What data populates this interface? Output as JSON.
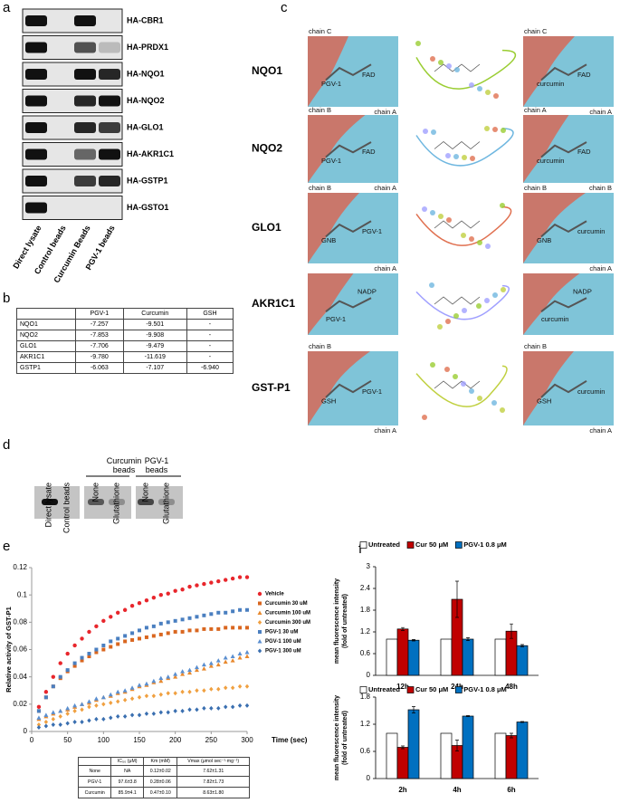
{
  "panel_letters": [
    "a",
    "b",
    "c",
    "d",
    "e",
    "f"
  ],
  "blot_a": {
    "proteins": [
      "HA-CBR1",
      "HA-PRDX1",
      "HA-NQO1",
      "HA-NQO2",
      "HA-GLO1",
      "HA-AKR1C1",
      "HA-GSTP1",
      "HA-GSTO1"
    ],
    "lanes": [
      "Direct lysate",
      "Control beads",
      "Curcumin Beads",
      "PGV-1 beads"
    ]
  },
  "docking_table": {
    "columns": [
      "PGV-1",
      "Curcumin",
      "GSH"
    ],
    "rows": [
      [
        "NQO1",
        "-7.257",
        "-9.501",
        "-"
      ],
      [
        "NQO2",
        "-7.853",
        "-9.908",
        "-"
      ],
      [
        "GLO1",
        "-7.706",
        "-9.479",
        "-"
      ],
      [
        "AKR1C1",
        "-9.780",
        "-11.619",
        "-"
      ],
      [
        "GSTP1",
        "-6.063",
        "-7.107",
        "-6.940"
      ]
    ]
  },
  "structures": [
    {
      "protein": "NQO1",
      "left": [
        "chain C",
        "PGV-1",
        "FAD",
        "chain A"
      ],
      "right": [
        "chain C",
        "curcumin",
        "FAD",
        "chain A"
      ]
    },
    {
      "protein": "NQO2",
      "left": [
        "chain B",
        "PGV-1",
        "FAD",
        "chain A"
      ],
      "right": [
        "chain A",
        "curcumin",
        "FAD",
        "chain B"
      ]
    },
    {
      "protein": "GLO1",
      "left": [
        "chain B",
        "GNB",
        "PGV-1",
        "chain A"
      ],
      "right": [
        "chain B",
        "GNB",
        "curcumin",
        "chain A"
      ]
    },
    {
      "protein": "AKR1C1",
      "left": [
        "NADP",
        "PGV-1"
      ],
      "right": [
        "NADP",
        "curcumin"
      ]
    },
    {
      "protein": "GST-P1",
      "left": [
        "chain B",
        "GSH",
        "PGV-1",
        "chain A"
      ],
      "right": [
        "chain B",
        "GSH",
        "curcumin",
        "chain A"
      ]
    }
  ],
  "blot_d": {
    "lanes": [
      "Direct lysate",
      "Control beads"
    ],
    "groups": [
      {
        "name": "Curcumin beads",
        "lanes": [
          "None",
          "Glutathione"
        ]
      },
      {
        "name": "PGV-1 beads",
        "lanes": [
          "None",
          "Glutathione"
        ]
      }
    ]
  },
  "kinetics_table": {
    "columns": [
      "IC₅₀ (μM)",
      "Km (mM)",
      "Vmax (μmol sec⁻¹·mg⁻¹)"
    ],
    "rows": [
      [
        "None",
        "NA",
        "0.12±0.02",
        "7.62±1.31"
      ],
      [
        "PGV-1",
        "97.6±3.8",
        "0.28±0.06",
        "7.82±1.73"
      ],
      [
        "Curcumin",
        "85.9±4.1",
        "0.47±0.10",
        "8.63±1.80"
      ]
    ]
  },
  "chart_data": [
    {
      "type": "scatter",
      "ylabel": "Relative activity of GST-P1",
      "xlabel": "Time (sec)",
      "legend": "right",
      "grid": false,
      "xlim": [
        0,
        300
      ],
      "xticks": [
        0,
        50,
        100,
        150,
        200,
        250,
        300
      ],
      "ylim": [
        0,
        0.12
      ],
      "yticks": [
        0,
        0.02,
        0.04,
        0.06,
        0.08,
        0.1,
        0.12
      ],
      "x": [
        10,
        20,
        30,
        40,
        50,
        60,
        70,
        80,
        90,
        100,
        110,
        120,
        130,
        140,
        150,
        160,
        170,
        180,
        190,
        200,
        210,
        220,
        230,
        240,
        250,
        260,
        270,
        280,
        290,
        300
      ],
      "series": [
        {
          "name": "Vehicle",
          "color": "#e8262c",
          "marker": "circle",
          "values": [
            0.018,
            0.029,
            0.04,
            0.05,
            0.057,
            0.063,
            0.068,
            0.073,
            0.077,
            0.081,
            0.084,
            0.087,
            0.089,
            0.092,
            0.094,
            0.096,
            0.098,
            0.1,
            0.101,
            0.103,
            0.104,
            0.106,
            0.107,
            0.108,
            0.109,
            0.11,
            0.111,
            0.112,
            0.113,
            0.113
          ]
        },
        {
          "name": "Curcumin 30 uM",
          "color": "#d9661f",
          "marker": "square",
          "values": [
            0.015,
            0.025,
            0.033,
            0.039,
            0.044,
            0.048,
            0.052,
            0.055,
            0.058,
            0.06,
            0.062,
            0.064,
            0.066,
            0.067,
            0.068,
            0.069,
            0.07,
            0.071,
            0.072,
            0.073,
            0.073,
            0.074,
            0.074,
            0.075,
            0.075,
            0.075,
            0.076,
            0.076,
            0.076,
            0.076
          ]
        },
        {
          "name": "Curcumin 100 uM",
          "color": "#e8892e",
          "marker": "triangle",
          "values": [
            0.009,
            0.011,
            0.013,
            0.015,
            0.016,
            0.018,
            0.02,
            0.021,
            0.023,
            0.025,
            0.026,
            0.028,
            0.029,
            0.031,
            0.033,
            0.034,
            0.036,
            0.037,
            0.039,
            0.04,
            0.042,
            0.043,
            0.045,
            0.046,
            0.048,
            0.049,
            0.051,
            0.052,
            0.054,
            0.055
          ]
        },
        {
          "name": "Curcumin 300 uM",
          "color": "#f0a040",
          "marker": "diamond",
          "values": [
            0.005,
            0.007,
            0.009,
            0.011,
            0.013,
            0.015,
            0.016,
            0.018,
            0.019,
            0.02,
            0.021,
            0.022,
            0.023,
            0.024,
            0.025,
            0.026,
            0.026,
            0.027,
            0.028,
            0.028,
            0.029,
            0.029,
            0.03,
            0.03,
            0.031,
            0.031,
            0.032,
            0.032,
            0.033,
            0.033
          ]
        },
        {
          "name": "PGV-1 30 uM",
          "color": "#4a7fc0",
          "marker": "square",
          "values": [
            0.015,
            0.025,
            0.033,
            0.04,
            0.045,
            0.05,
            0.054,
            0.057,
            0.06,
            0.063,
            0.066,
            0.068,
            0.07,
            0.072,
            0.074,
            0.076,
            0.077,
            0.079,
            0.08,
            0.081,
            0.082,
            0.083,
            0.084,
            0.085,
            0.086,
            0.087,
            0.087,
            0.088,
            0.089,
            0.089
          ]
        },
        {
          "name": "PGV-1 100 uM",
          "color": "#5b8fd0",
          "marker": "triangle",
          "values": [
            0.01,
            0.012,
            0.014,
            0.015,
            0.017,
            0.019,
            0.02,
            0.022,
            0.024,
            0.025,
            0.027,
            0.029,
            0.03,
            0.032,
            0.034,
            0.035,
            0.037,
            0.039,
            0.04,
            0.042,
            0.044,
            0.045,
            0.047,
            0.049,
            0.05,
            0.052,
            0.054,
            0.055,
            0.057,
            0.058
          ]
        },
        {
          "name": "PGV-1 300 uM",
          "color": "#3a6fb0",
          "marker": "diamond",
          "values": [
            0.003,
            0.004,
            0.005,
            0.005,
            0.006,
            0.007,
            0.007,
            0.008,
            0.009,
            0.009,
            0.01,
            0.011,
            0.011,
            0.012,
            0.012,
            0.013,
            0.013,
            0.014,
            0.014,
            0.015,
            0.015,
            0.016,
            0.016,
            0.017,
            0.017,
            0.017,
            0.018,
            0.018,
            0.019,
            0.019
          ]
        }
      ]
    },
    {
      "type": "bar",
      "ylabel": [
        "mean fluorescence intensity",
        "(fold of untreated)"
      ],
      "legend": "top",
      "grid": false,
      "categories": [
        "12h",
        "24h",
        "48h"
      ],
      "ylim": [
        0,
        3
      ],
      "yticks": [
        0,
        0.6,
        1.2,
        1.8,
        2.4,
        3
      ],
      "series": [
        {
          "name": "Untreated",
          "color": "#ffffff",
          "values": [
            1,
            1,
            1
          ]
        },
        {
          "name": "Cur 50 μM",
          "color": "#c00000",
          "values": [
            1.28,
            2.1,
            1.22
          ],
          "errors": [
            0.04,
            0.5,
            0.2
          ]
        },
        {
          "name": "PGV-1 0.8 μM",
          "color": "#0070c0",
          "values": [
            0.97,
            1.0,
            0.82
          ],
          "errors": [
            0.02,
            0.04,
            0.03
          ]
        }
      ]
    },
    {
      "type": "bar",
      "ylabel": [
        "mean fluorescence intensity",
        "(fold of untreated)"
      ],
      "legend": "top",
      "grid": false,
      "categories": [
        "2h",
        "4h",
        "6h"
      ],
      "ylim": [
        0,
        1.8
      ],
      "yticks": [
        0,
        0.6,
        1.2,
        1.8
      ],
      "series": [
        {
          "name": "Untreated",
          "color": "#ffffff",
          "values": [
            1,
            1,
            1
          ]
        },
        {
          "name": "Cur 50 μM",
          "color": "#c00000",
          "values": [
            0.69,
            0.73,
            0.95
          ],
          "errors": [
            0.03,
            0.12,
            0.05
          ]
        },
        {
          "name": "PGV-1 0.8 μM",
          "color": "#0070c0",
          "values": [
            1.52,
            1.38,
            1.25
          ],
          "errors": [
            0.07,
            0.01,
            0.01
          ]
        }
      ]
    }
  ]
}
